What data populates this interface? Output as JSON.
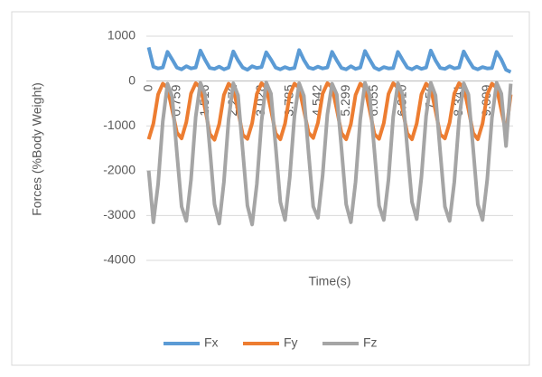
{
  "chart_data": {
    "type": "line",
    "x_label": "Time(s)",
    "y_label": "Forces (%Body Weight)",
    "categories": [
      "0",
      null,
      null,
      null,
      null,
      null,
      "0.759",
      null,
      null,
      null,
      null,
      null,
      "1.516",
      null,
      null,
      null,
      null,
      null,
      "2.272",
      null,
      null,
      null,
      null,
      null,
      "3.028",
      null,
      null,
      null,
      null,
      null,
      "3.785",
      null,
      null,
      null,
      null,
      null,
      "4.542",
      null,
      null,
      null,
      null,
      null,
      "5.299",
      null,
      null,
      null,
      null,
      null,
      "6.055",
      null,
      null,
      null,
      null,
      null,
      "6.810",
      null,
      null,
      null,
      null,
      null,
      "7.58",
      null,
      null,
      null,
      null,
      null,
      "8.341",
      null,
      null,
      null,
      null,
      null,
      "9.099",
      null,
      null,
      null,
      null,
      null
    ],
    "series": [
      {
        "name": "Fx",
        "color": "#5b9bd5",
        "values": [
          750,
          320,
          280,
          300,
          650,
          480,
          300,
          260,
          330,
          280,
          300,
          680,
          470,
          290,
          270,
          320,
          260,
          300,
          660,
          460,
          300,
          250,
          330,
          290,
          310,
          640,
          480,
          300,
          260,
          310,
          270,
          290,
          690,
          470,
          300,
          270,
          320,
          280,
          300,
          650,
          460,
          290,
          260,
          330,
          270,
          300,
          670,
          480,
          300,
          250,
          310,
          280,
          290,
          650,
          470,
          300,
          260,
          320,
          270,
          300,
          680,
          460,
          290,
          270,
          330,
          280,
          300,
          660,
          470,
          300,
          260,
          310,
          280,
          290,
          650,
          480,
          250,
          200
        ]
      },
      {
        "name": "Fy",
        "color": "#ed7d31",
        "values": [
          -1300,
          -950,
          -300,
          -60,
          -150,
          -650,
          -1150,
          -1280,
          -920,
          -280,
          -50,
          -140,
          -620,
          -1180,
          -1310,
          -960,
          -310,
          -60,
          -160,
          -660,
          -1200,
          -1290,
          -940,
          -290,
          -50,
          -150,
          -640,
          -1170,
          -1300,
          -950,
          -300,
          -60,
          -150,
          -650,
          -1150,
          -1270,
          -930,
          -280,
          -50,
          -140,
          -630,
          -1160,
          -1300,
          -960,
          -310,
          -60,
          -150,
          -650,
          -1180,
          -1290,
          -940,
          -290,
          -50,
          -150,
          -640,
          -1170,
          -1300,
          -950,
          -300,
          -60,
          -160,
          -660,
          -1190,
          -1280,
          -930,
          -280,
          -50,
          -140,
          -630,
          -1160,
          -1300,
          -950,
          -300,
          -60,
          -150,
          -650,
          -1150,
          -300
        ]
      },
      {
        "name": "Fz",
        "color": "#a5a5a5",
        "values": [
          -2000,
          -3150,
          -2300,
          -900,
          -60,
          -350,
          -1600,
          -2800,
          -3120,
          -2200,
          -800,
          -40,
          -300,
          -1500,
          -2750,
          -3180,
          -2250,
          -850,
          -50,
          -320,
          -1550,
          -2780,
          -3200,
          -2300,
          -900,
          -30,
          -280,
          -1450,
          -2700,
          -3100,
          -2150,
          -780,
          -50,
          -330,
          -1600,
          -2800,
          -3050,
          -2100,
          -750,
          -60,
          -300,
          -1500,
          -2750,
          -3150,
          -2250,
          -850,
          -40,
          -310,
          -1550,
          -2780,
          -3100,
          -2200,
          -800,
          -50,
          -300,
          -1500,
          -2700,
          -3080,
          -2150,
          -780,
          -40,
          -320,
          -1580,
          -2800,
          -3120,
          -2250,
          -870,
          -50,
          -300,
          -1500,
          -2750,
          -3100,
          -2200,
          -820,
          -40,
          -280,
          -1450,
          -60
        ]
      }
    ],
    "ylim": [
      -4000,
      1000
    ],
    "yticks": [
      -4000,
      -3000,
      -2000,
      -1000,
      0,
      1000
    ],
    "grid": true,
    "legend": "bottom"
  }
}
